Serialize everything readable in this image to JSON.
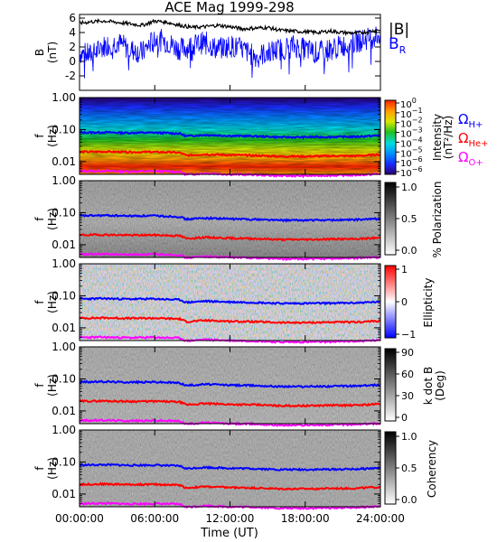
{
  "colors": {
    "field_magnitude": "#000000",
    "field_radial": "#0000ff",
    "proton": "#0000ff",
    "helium": "#ff0000",
    "oxygen": "#ff00ff",
    "axis": "#000000"
  },
  "chart_data": [
    {
      "type": "line",
      "title": "ACE Mag 1999-298",
      "ylabel_main": "B",
      "ylabel_unit": "(nT)",
      "xlim": [
        0,
        24
      ],
      "ylim": [
        -4,
        6.5
      ],
      "yticks": [
        "6",
        "4",
        "2",
        "0",
        "-2"
      ],
      "legend_placement": "right",
      "series": [
        {
          "name": "|B|",
          "x": [
            0,
            1,
            2,
            3,
            4,
            5,
            6,
            7,
            8,
            9,
            10,
            11,
            12,
            13,
            14,
            15,
            16,
            17,
            18,
            19,
            20,
            21,
            22,
            23,
            24
          ],
          "values": [
            5.3,
            5.5,
            5.6,
            5.4,
            5.2,
            5.0,
            5.6,
            5.4,
            5.0,
            4.7,
            4.8,
            5.0,
            4.8,
            4.5,
            4.6,
            4.7,
            4.3,
            4.2,
            4.1,
            4.0,
            4.2,
            4.0,
            3.9,
            4.1,
            4.4
          ]
        },
        {
          "name": "B",
          "subscript": "R",
          "x": [
            0,
            1,
            2,
            3,
            4,
            5,
            6,
            7,
            8,
            9,
            10,
            11,
            12,
            13,
            14,
            15,
            16,
            17,
            18,
            19,
            20,
            21,
            22,
            23,
            24
          ],
          "values": [
            1.5,
            1.2,
            2.5,
            3.0,
            2.0,
            1.5,
            3.5,
            3.0,
            2.0,
            2.5,
            3.0,
            2.0,
            2.5,
            2.0,
            1.0,
            1.5,
            2.0,
            2.5,
            2.0,
            1.5,
            2.0,
            2.5,
            3.0,
            3.5,
            4.0
          ]
        }
      ]
    },
    {
      "type": "heatmap",
      "ylabel_main": "f",
      "ylabel_unit": "(Hz)",
      "yticks": [
        "1.00",
        "0.10",
        "0.01"
      ],
      "ylim": [
        0.004,
        1.0
      ],
      "scale": "log",
      "colorbar": {
        "label": "Intensity",
        "unit": "(nT²/Hz)",
        "tick_bases": [
          "10",
          "10",
          "10",
          "10",
          "10",
          "10",
          "10",
          "10"
        ],
        "tick_exponents": [
          "0",
          "−1",
          "−2",
          "−3",
          "−4",
          "−5",
          "−6",
          "−6"
        ],
        "palette": [
          "#2a0070",
          "#1a2aff",
          "#0090ff",
          "#00dcdc",
          "#20c020",
          "#d8e800",
          "#ffa000",
          "#ff2000"
        ]
      },
      "gyrofrequency_labels": [
        {
          "symbol": "Ω",
          "sub": "H+"
        },
        {
          "symbol": "Ω",
          "sub": "He+"
        },
        {
          "symbol": "Ω",
          "sub": "O+"
        }
      ]
    },
    {
      "type": "heatmap",
      "ylabel_main": "f",
      "ylabel_unit": "(Hz)",
      "yticks": [
        "1.00",
        "0.10",
        "0.01"
      ],
      "colorbar": {
        "label": "% Polarization",
        "ticks": [
          "1.0",
          "0.5",
          "0.0"
        ],
        "palette": [
          "#ffffff",
          "#000000"
        ]
      }
    },
    {
      "type": "heatmap",
      "ylabel_main": "f",
      "ylabel_unit": "(Hz)",
      "yticks": [
        "1.00",
        "0.10",
        "0.01"
      ],
      "colorbar": {
        "label": "Ellipticity",
        "ticks": [
          "1",
          "0",
          "−1"
        ],
        "palette": [
          "#0000ff",
          "#ffffff",
          "#ff0000"
        ]
      }
    },
    {
      "type": "heatmap",
      "ylabel_main": "f",
      "ylabel_unit": "(Hz)",
      "yticks": [
        "1.00",
        "0.10",
        "0.01"
      ],
      "colorbar": {
        "label": "k dot B",
        "unit": "(Deg)",
        "ticks": [
          "90",
          "60",
          "30",
          "0"
        ],
        "palette": [
          "#ffffff",
          "#000000"
        ]
      }
    },
    {
      "type": "heatmap",
      "ylabel_main": "f",
      "ylabel_unit": "(Hz)",
      "yticks": [
        "1.00",
        "0.10",
        "0.01"
      ],
      "colorbar": {
        "label": "Coherency",
        "ticks": [
          "1.0",
          "0.5",
          "0.0"
        ],
        "palette": [
          "#ffffff",
          "#000000"
        ]
      },
      "xlabel": "Time (UT)",
      "xticks": [
        "00:00:00",
        "06:00:00",
        "12:00:00",
        "18:00:00",
        "24:00:00"
      ]
    }
  ],
  "gyrofrequencies_hz": {
    "x": [
      0,
      2,
      4,
      6,
      8,
      8.5,
      10,
      12,
      14,
      16,
      18,
      20,
      22,
      24
    ],
    "H+": [
      0.08,
      0.082,
      0.079,
      0.08,
      0.075,
      0.062,
      0.068,
      0.064,
      0.062,
      0.058,
      0.058,
      0.059,
      0.06,
      0.065
    ],
    "He+": [
      0.02,
      0.0205,
      0.0198,
      0.02,
      0.019,
      0.0155,
      0.017,
      0.016,
      0.0155,
      0.0145,
      0.0145,
      0.015,
      0.015,
      0.0165
    ],
    "O+": [
      0.005,
      0.0051,
      0.0049,
      0.005,
      0.0048,
      0.0039,
      0.0043,
      0.004,
      0.0039,
      0.0036,
      0.0036,
      0.0037,
      0.0038,
      0.0041
    ]
  }
}
